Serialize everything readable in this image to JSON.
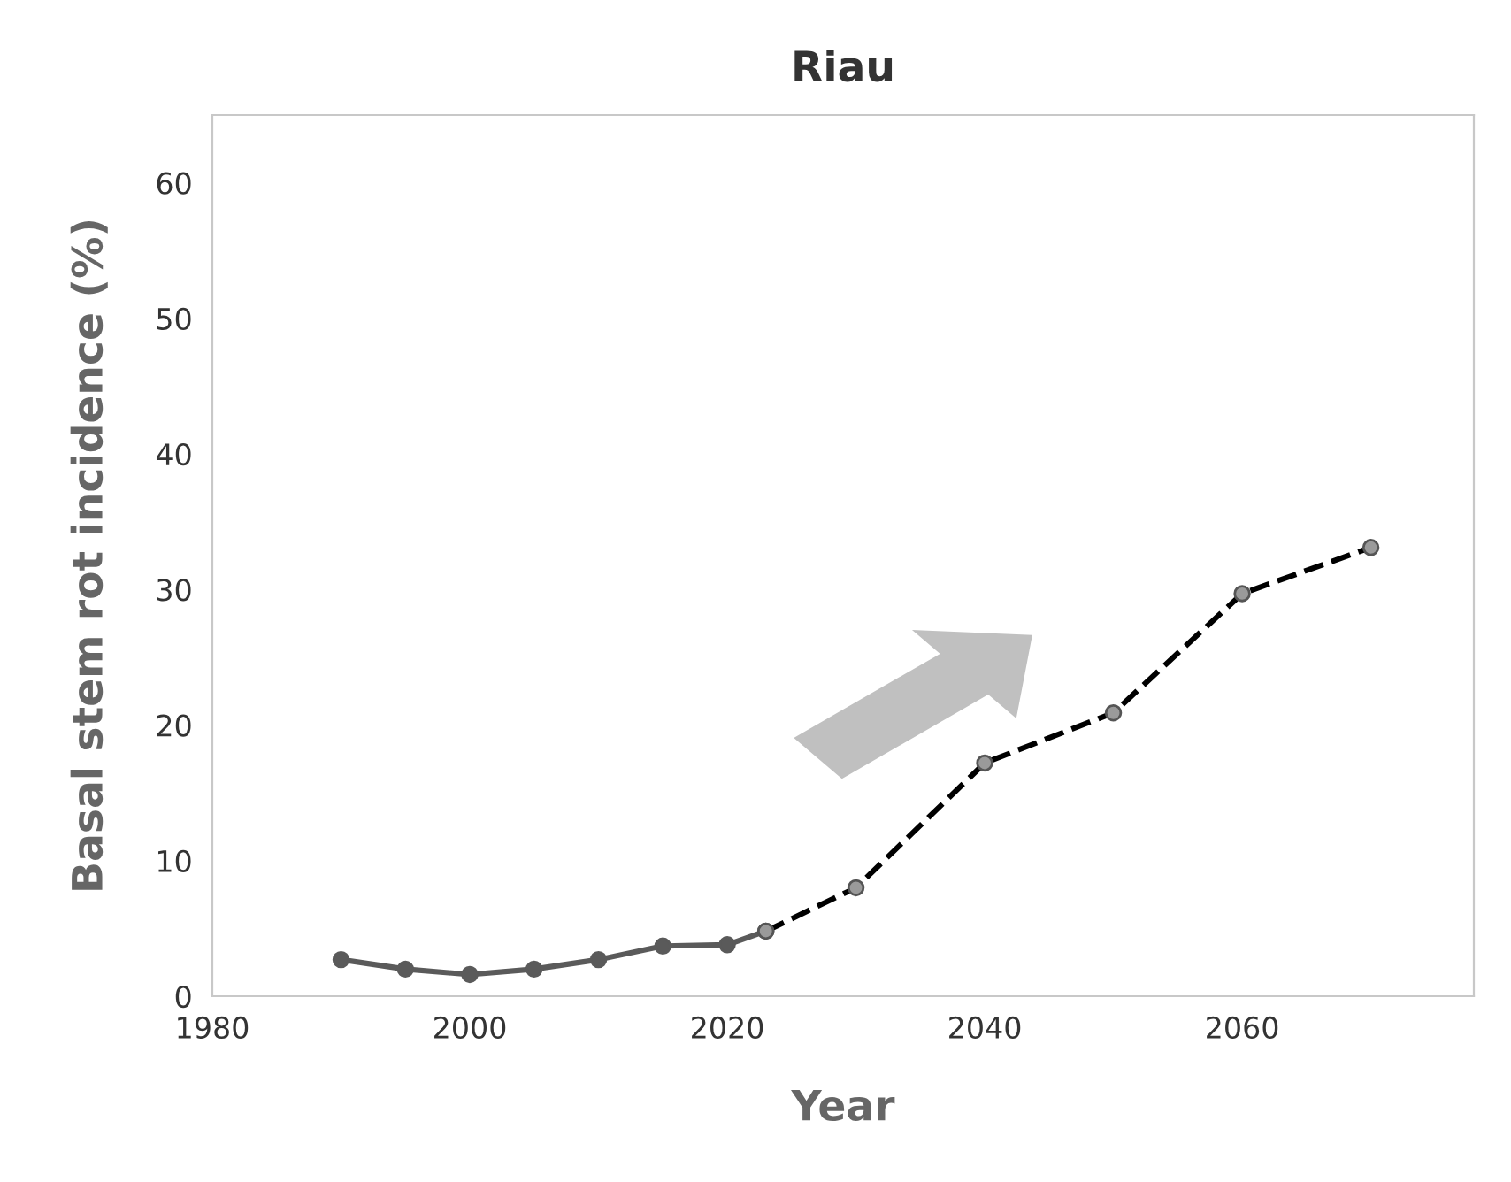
{
  "chart_data": {
    "type": "line",
    "title": "Riau",
    "xlabel": "Year",
    "ylabel": "Basal stem rot incidence (%)",
    "series": [
      {
        "color": "#5a5a5a",
        "line_style": "solid",
        "marker": "circle",
        "x": [
          1990,
          1995,
          2000,
          2005,
          2010,
          2015,
          2020,
          2023
        ],
        "values": [
          2.7,
          2.0,
          1.6,
          2.0,
          2.7,
          3.7,
          3.8,
          4.8
        ]
      },
      {
        "color": "#000000",
        "line_style": "dashed",
        "marker": "circle",
        "x": [
          2023,
          2030,
          2040,
          2050,
          2060,
          2070
        ],
        "values": [
          4.8,
          8.0,
          17.2,
          20.9,
          29.7,
          33.1
        ]
      }
    ],
    "xlim": [
      1980,
      2078
    ],
    "xticks": [
      1980,
      2000,
      2020,
      2040,
      2060
    ],
    "ylim": [
      0,
      65
    ],
    "yticks": [
      0,
      10,
      20,
      30,
      40,
      50,
      60
    ],
    "grid": false,
    "legend": false
  }
}
